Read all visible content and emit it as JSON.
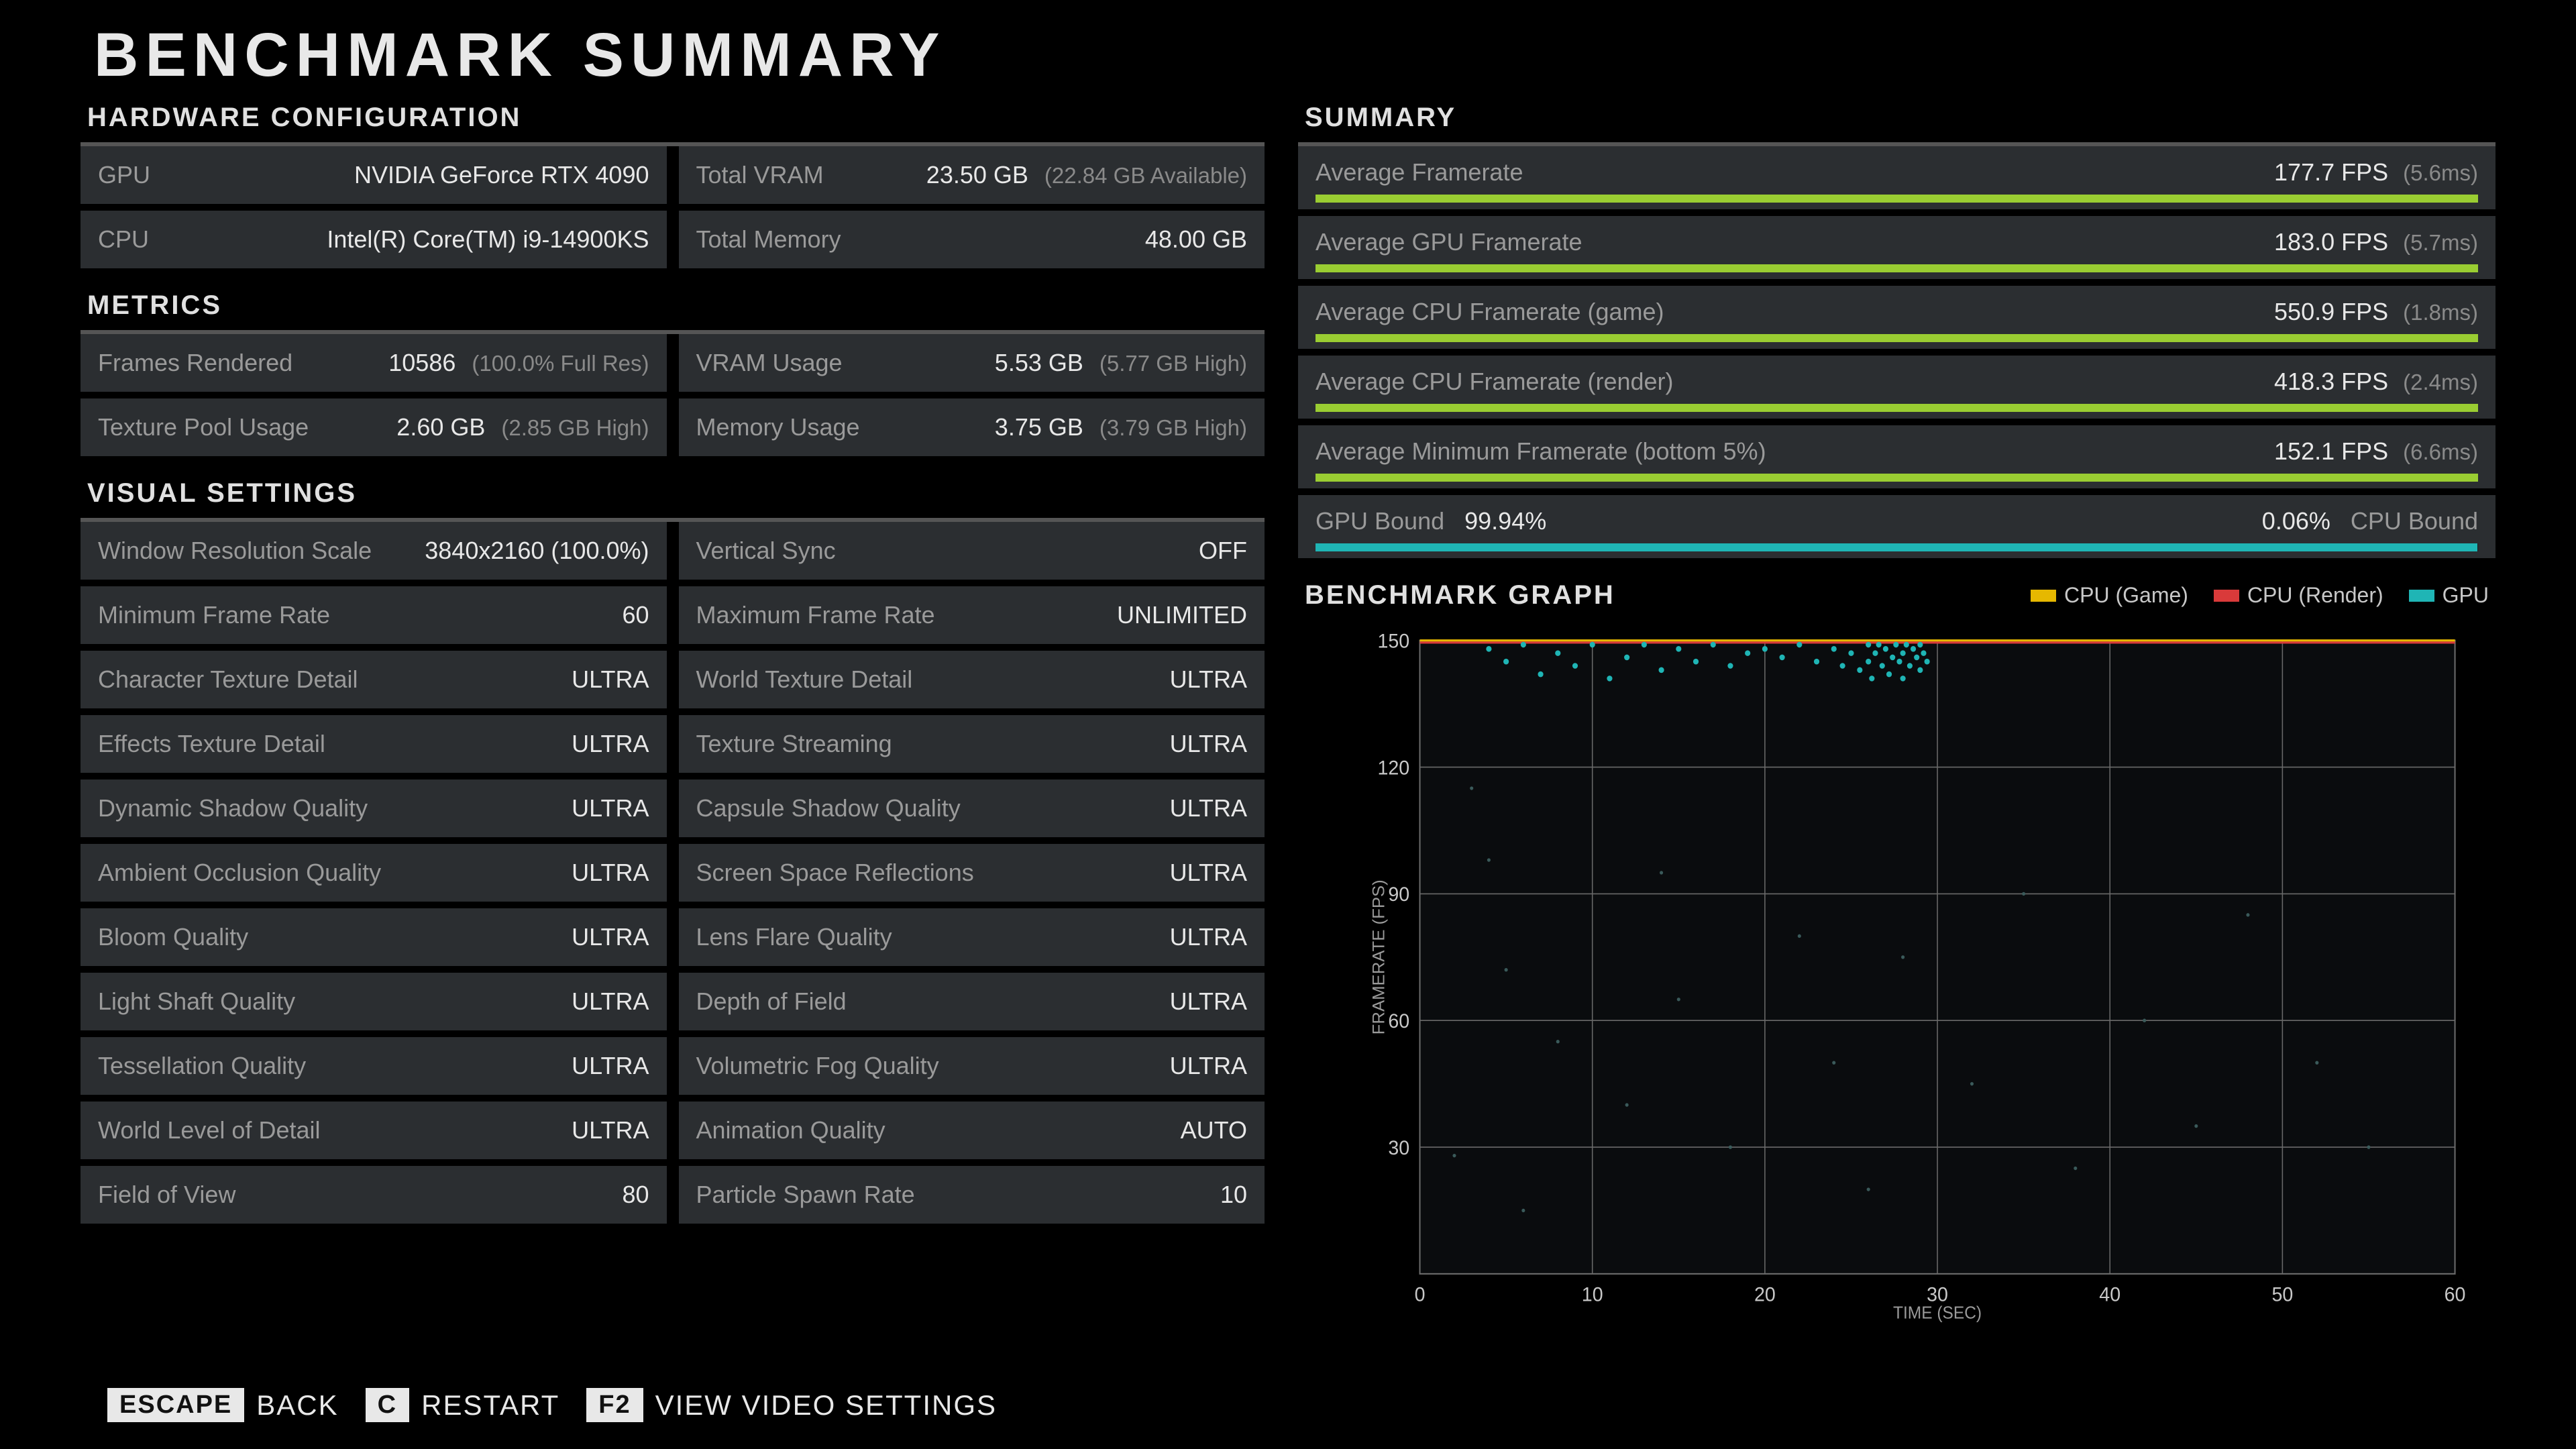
{
  "title": "BENCHMARK SUMMARY",
  "hardware": {
    "heading": "HARDWARE CONFIGURATION",
    "rows": [
      {
        "label": "GPU",
        "value": "NVIDIA GeForce RTX 4090"
      },
      {
        "label": "Total VRAM",
        "value": "23.50 GB",
        "sub": "(22.84 GB Available)"
      },
      {
        "label": "CPU",
        "value": "Intel(R) Core(TM) i9-14900KS"
      },
      {
        "label": "Total Memory",
        "value": "48.00 GB"
      }
    ]
  },
  "metrics": {
    "heading": "METRICS",
    "rows": [
      {
        "label": "Frames Rendered",
        "value": "10586",
        "sub": "(100.0% Full Res)"
      },
      {
        "label": "VRAM Usage",
        "value": "5.53 GB",
        "sub": "(5.77 GB High)"
      },
      {
        "label": "Texture Pool Usage",
        "value": "2.60 GB",
        "sub": "(2.85 GB High)"
      },
      {
        "label": "Memory Usage",
        "value": "3.75 GB",
        "sub": "(3.79 GB High)"
      }
    ]
  },
  "visual": {
    "heading": "VISUAL SETTINGS",
    "rows": [
      {
        "label": "Window Resolution Scale",
        "value": "3840x2160 (100.0%)"
      },
      {
        "label": "Vertical Sync",
        "value": "OFF"
      },
      {
        "label": "Minimum Frame Rate",
        "value": "60"
      },
      {
        "label": "Maximum Frame Rate",
        "value": "UNLIMITED"
      },
      {
        "label": "Character Texture Detail",
        "value": "ULTRA"
      },
      {
        "label": "World Texture Detail",
        "value": "ULTRA"
      },
      {
        "label": "Effects Texture Detail",
        "value": "ULTRA"
      },
      {
        "label": "Texture Streaming",
        "value": "ULTRA"
      },
      {
        "label": "Dynamic Shadow Quality",
        "value": "ULTRA"
      },
      {
        "label": "Capsule Shadow Quality",
        "value": "ULTRA"
      },
      {
        "label": "Ambient Occlusion Quality",
        "value": "ULTRA"
      },
      {
        "label": "Screen Space Reflections",
        "value": "ULTRA"
      },
      {
        "label": "Bloom Quality",
        "value": "ULTRA"
      },
      {
        "label": "Lens Flare Quality",
        "value": "ULTRA"
      },
      {
        "label": "Light Shaft Quality",
        "value": "ULTRA"
      },
      {
        "label": "Depth of Field",
        "value": "ULTRA"
      },
      {
        "label": "Tessellation Quality",
        "value": "ULTRA"
      },
      {
        "label": "Volumetric Fog Quality",
        "value": "ULTRA"
      },
      {
        "label": "World Level of Detail",
        "value": "ULTRA"
      },
      {
        "label": "Animation Quality",
        "value": "AUTO"
      },
      {
        "label": "Field of View",
        "value": "80"
      },
      {
        "label": "Particle Spawn Rate",
        "value": "10"
      }
    ]
  },
  "summary": {
    "heading": "SUMMARY",
    "rows": [
      {
        "label": "Average Framerate",
        "fps": "177.7 FPS",
        "ms": "(5.6ms)",
        "pct": 100
      },
      {
        "label": "Average GPU Framerate",
        "fps": "183.0 FPS",
        "ms": "(5.7ms)",
        "pct": 100
      },
      {
        "label": "Average CPU Framerate (game)",
        "fps": "550.9 FPS",
        "ms": "(1.8ms)",
        "pct": 100
      },
      {
        "label": "Average CPU Framerate (render)",
        "fps": "418.3 FPS",
        "ms": "(2.4ms)",
        "pct": 100
      },
      {
        "label": "Average Minimum Framerate (bottom 5%)",
        "fps": "152.1 FPS",
        "ms": "(6.6ms)",
        "pct": 100
      }
    ],
    "gpu_bound_label": "GPU Bound",
    "gpu_bound_pct": "99.94%",
    "cpu_bound_label": "CPU Bound",
    "cpu_bound_pct": "0.06%",
    "gpu_bound_bar_pct": 99.94,
    "bar_color_green": "#9acd32",
    "bar_color_cyan": "#1fb5b5"
  },
  "graph": {
    "heading": "BENCHMARK GRAPH",
    "legend": [
      {
        "label": "CPU (Game)",
        "color": "#e6b800"
      },
      {
        "label": "CPU (Render)",
        "color": "#d93a3a"
      },
      {
        "label": "GPU",
        "color": "#1fb5b5"
      }
    ],
    "x_axis_label": "TIME (SEC)",
    "y_axis_label": "FRAMERATE (FPS)",
    "xlim": [
      0,
      60
    ],
    "ylim": [
      0,
      150
    ],
    "xtick_step": 10,
    "ytick_step": 30,
    "xticks": [
      0,
      10,
      20,
      30,
      40,
      50,
      60
    ],
    "yticks": [
      30,
      60,
      90,
      120,
      150
    ],
    "grid_color": "#6a6a6a",
    "background_color": "#0a0c0e",
    "series": {
      "cpu_game": {
        "color": "#e6b800",
        "flat_y": 150
      },
      "cpu_render": {
        "color": "#d93a3a",
        "flat_y": 150
      },
      "gpu": {
        "color": "#1fb5b5",
        "points": [
          [
            4,
            148
          ],
          [
            5,
            145
          ],
          [
            6,
            149
          ],
          [
            7,
            142
          ],
          [
            8,
            147
          ],
          [
            9,
            144
          ],
          [
            10,
            149
          ],
          [
            11,
            141
          ],
          [
            12,
            146
          ],
          [
            13,
            149
          ],
          [
            14,
            143
          ],
          [
            15,
            148
          ],
          [
            16,
            145
          ],
          [
            17,
            149
          ],
          [
            18,
            144
          ],
          [
            19,
            147
          ],
          [
            20,
            148
          ],
          [
            21,
            146
          ],
          [
            22,
            149
          ],
          [
            23,
            145
          ],
          [
            24,
            148
          ],
          [
            24.5,
            144
          ],
          [
            25,
            147
          ],
          [
            25.5,
            143
          ],
          [
            26,
            149
          ],
          [
            26,
            145
          ],
          [
            26.2,
            141
          ],
          [
            26.4,
            147
          ],
          [
            26.6,
            149
          ],
          [
            26.8,
            144
          ],
          [
            27,
            148
          ],
          [
            27.2,
            142
          ],
          [
            27.4,
            146
          ],
          [
            27.6,
            149
          ],
          [
            27.8,
            145
          ],
          [
            28,
            147
          ],
          [
            28,
            141
          ],
          [
            28.2,
            149
          ],
          [
            28.4,
            144
          ],
          [
            28.6,
            148
          ],
          [
            28.8,
            146
          ],
          [
            29,
            149
          ],
          [
            29,
            143
          ],
          [
            29.2,
            147
          ],
          [
            29.4,
            145
          ]
        ]
      }
    },
    "sparse_low_points": [
      [
        2,
        28
      ],
      [
        3,
        115
      ],
      [
        4,
        98
      ],
      [
        5,
        72
      ],
      [
        6,
        15
      ],
      [
        8,
        55
      ],
      [
        12,
        40
      ],
      [
        14,
        95
      ],
      [
        15,
        65
      ],
      [
        18,
        30
      ],
      [
        22,
        80
      ],
      [
        24,
        50
      ],
      [
        26,
        20
      ],
      [
        28,
        75
      ],
      [
        32,
        45
      ],
      [
        35,
        90
      ],
      [
        38,
        25
      ],
      [
        42,
        60
      ],
      [
        45,
        35
      ],
      [
        48,
        85
      ],
      [
        52,
        50
      ],
      [
        55,
        30
      ]
    ]
  },
  "footer": {
    "items": [
      {
        "key": "ESCAPE",
        "label": "BACK"
      },
      {
        "key": "C",
        "label": "RESTART"
      },
      {
        "key": "F2",
        "label": "VIEW VIDEO SETTINGS"
      }
    ]
  },
  "colors": {
    "bg": "#000000",
    "panel": "#2b2e31",
    "text_primary": "#e8e8e8",
    "text_secondary": "#9a9a9a",
    "divider": "#555555"
  }
}
